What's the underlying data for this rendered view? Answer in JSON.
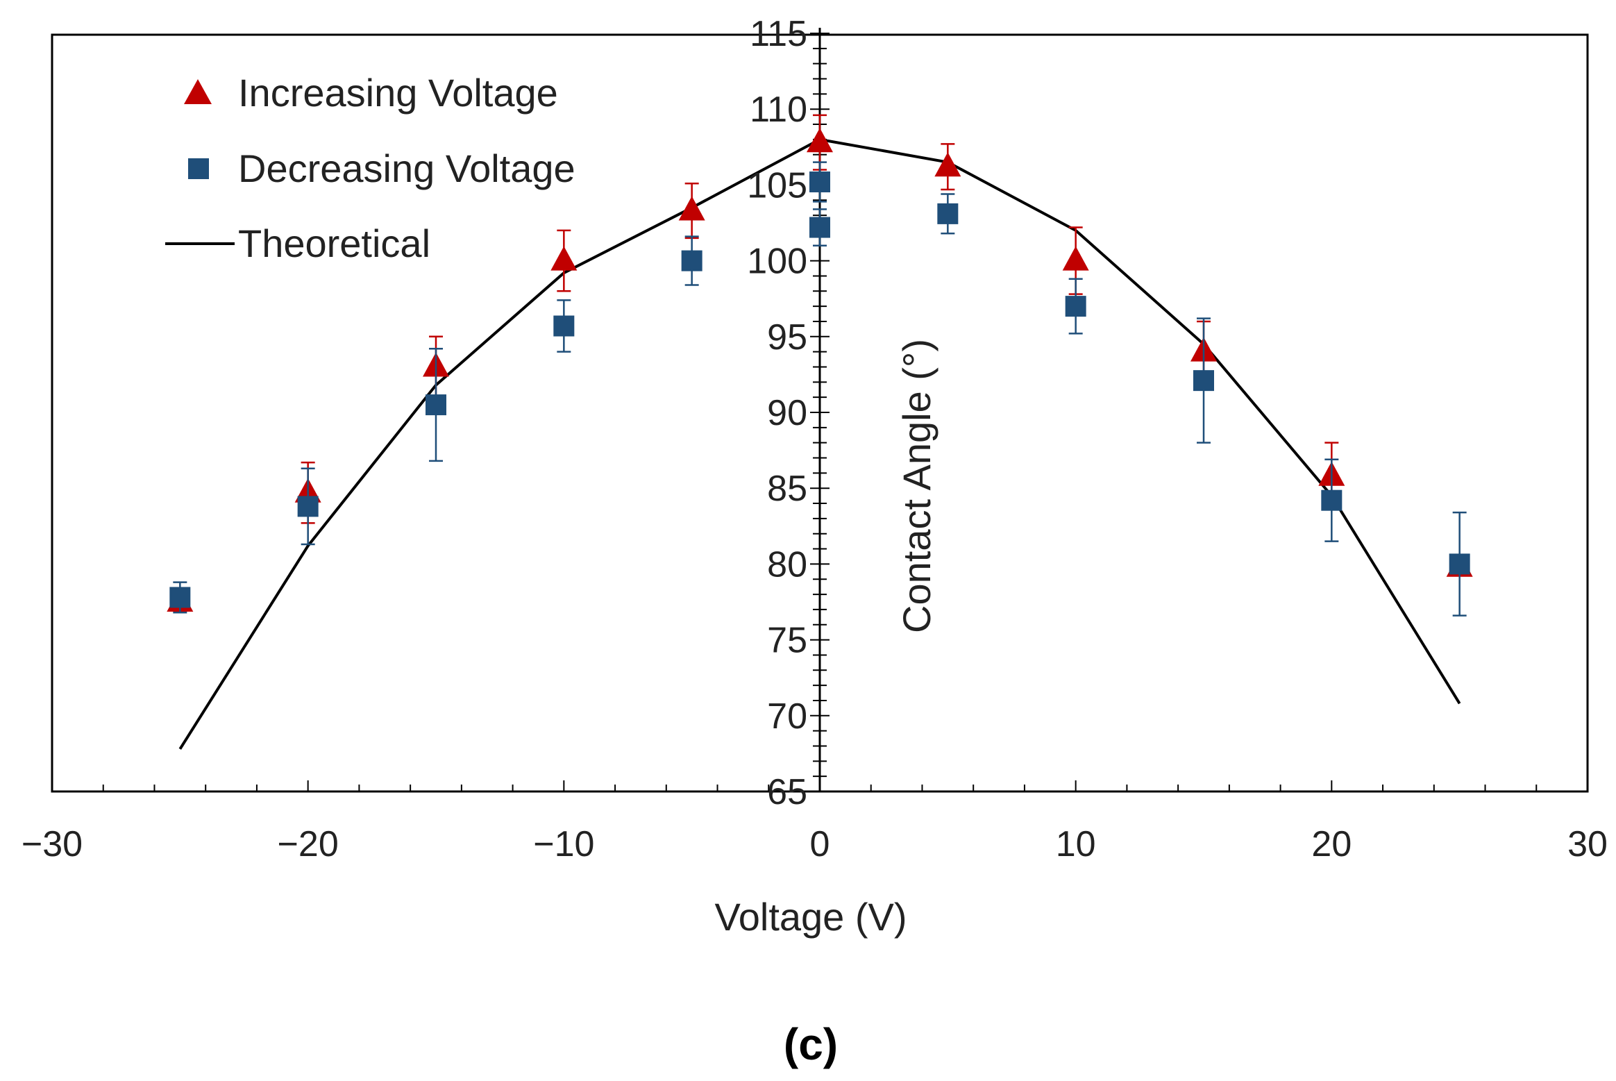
{
  "chart_data": {
    "type": "scatter",
    "xlabel": "Voltage (V)",
    "ylabel": "Contact Angle (°)",
    "xlim": [
      -30,
      30
    ],
    "ylim": [
      65,
      115
    ],
    "x_major_step": 10,
    "x_minor_step": 2,
    "y_major_step": 5,
    "y_minor_step": 1,
    "x_ticks": [
      "−30",
      "−20",
      "−10",
      "0",
      "10",
      "20",
      "30"
    ],
    "x_tick_values": [
      -30,
      -20,
      -10,
      0,
      10,
      20,
      30
    ],
    "y_ticks": [
      "65",
      "70",
      "75",
      "80",
      "85",
      "90",
      "95",
      "100",
      "105",
      "110",
      "115"
    ],
    "y_tick_values": [
      65,
      70,
      75,
      80,
      85,
      90,
      95,
      100,
      105,
      110,
      115
    ],
    "series": [
      {
        "name": "Increasing Voltage",
        "marker": "triangle",
        "color": "#c00000",
        "points": [
          {
            "x": -25,
            "y": 77.5,
            "err": 0.5
          },
          {
            "x": -20,
            "y": 84.7,
            "err": 2.0
          },
          {
            "x": -15,
            "y": 93.0,
            "err": 2.0
          },
          {
            "x": -10,
            "y": 100.0,
            "err": 2.0
          },
          {
            "x": -5,
            "y": 103.3,
            "err": 1.8
          },
          {
            "x": 0,
            "y": 107.8,
            "err": 1.8
          },
          {
            "x": 5,
            "y": 106.2,
            "err": 1.5
          },
          {
            "x": 10,
            "y": 100.0,
            "err": 2.2
          },
          {
            "x": 15,
            "y": 94.0,
            "err": 2.0
          },
          {
            "x": 20,
            "y": 85.8,
            "err": 2.2
          },
          {
            "x": 25,
            "y": 79.8,
            "err": 0.5
          }
        ]
      },
      {
        "name": "Decreasing Voltage",
        "marker": "square",
        "color": "#1f4e79",
        "points": [
          {
            "x": -25,
            "y": 77.8,
            "err": 1.0
          },
          {
            "x": -20,
            "y": 83.8,
            "err": 2.5
          },
          {
            "x": -15,
            "y": 90.5,
            "err": 3.7
          },
          {
            "x": -10,
            "y": 95.7,
            "err": 1.7
          },
          {
            "x": -5,
            "y": 100.0,
            "err": 1.6
          },
          {
            "x": 0,
            "y": 105.2,
            "err": 1.3
          },
          {
            "x": 0,
            "y": 102.2,
            "err": 1.2
          },
          {
            "x": 5,
            "y": 103.1,
            "err": 1.3
          },
          {
            "x": 10,
            "y": 97.0,
            "err": 1.8
          },
          {
            "x": 15,
            "y": 92.1,
            "err": 4.1
          },
          {
            "x": 20,
            "y": 84.2,
            "err": 2.7
          },
          {
            "x": 25,
            "y": 80.0,
            "err": 3.4
          }
        ]
      },
      {
        "name": "Theoretical",
        "marker": "line",
        "color": "#000000",
        "points": [
          {
            "x": -25,
            "y": 67.8
          },
          {
            "x": -20,
            "y": 81.2
          },
          {
            "x": -15,
            "y": 91.8
          },
          {
            "x": -10,
            "y": 99.2
          },
          {
            "x": -5,
            "y": 103.5
          },
          {
            "x": 0,
            "y": 108.0
          },
          {
            "x": 5,
            "y": 106.5
          },
          {
            "x": 10,
            "y": 102.0
          },
          {
            "x": 15,
            "y": 94.5
          },
          {
            "x": 20,
            "y": 84.5
          },
          {
            "x": 25,
            "y": 70.8
          }
        ]
      }
    ]
  },
  "caption": "(c)"
}
